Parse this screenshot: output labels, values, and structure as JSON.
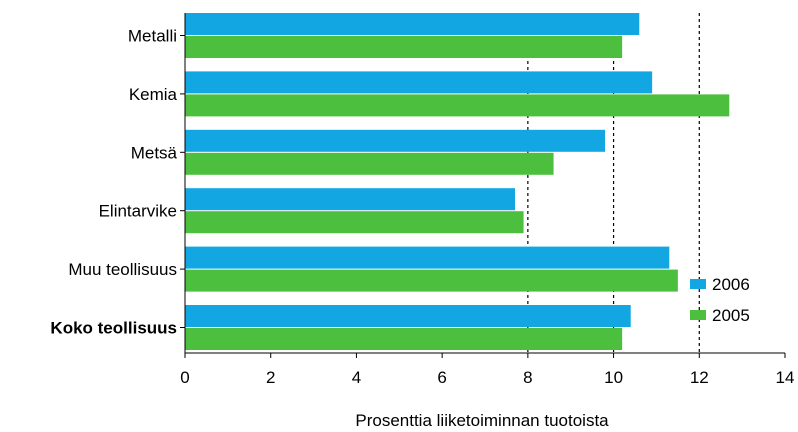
{
  "chart_data": {
    "type": "bar",
    "orientation": "horizontal",
    "categories": [
      "Metalli",
      "Kemia",
      "Metsä",
      "Elintarvike",
      "Muu teollisuus",
      "Koko teollisuus"
    ],
    "bold_categories": [
      "Koko teollisuus"
    ],
    "series": [
      {
        "name": "2006",
        "color": "#12a6e3",
        "values": [
          10.6,
          10.9,
          9.8,
          7.7,
          11.3,
          10.4
        ]
      },
      {
        "name": "2005",
        "color": "#4cbf3f",
        "values": [
          10.2,
          12.7,
          8.6,
          7.9,
          11.5,
          10.2
        ]
      }
    ],
    "xlabel": "Prosenttia liiketoiminnan tuotoista",
    "xlim": [
      0,
      14
    ],
    "xticks": [
      0,
      2,
      4,
      6,
      8,
      10,
      12,
      14
    ],
    "xtick_labels": [
      "0",
      "2",
      "4",
      "6",
      "8",
      "10",
      "12",
      "14"
    ],
    "gridlines": {
      "style": "dashed",
      "color": "#000000",
      "values": [
        8,
        10,
        12
      ]
    },
    "legend": {
      "position": "lower-right",
      "entries": [
        "2006",
        "2005"
      ]
    }
  }
}
